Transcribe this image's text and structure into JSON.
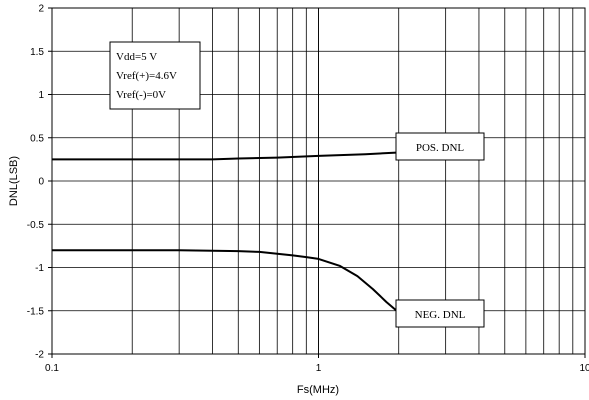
{
  "chart_data": {
    "type": "line",
    "xlabel": "Fs(MHz)",
    "ylabel": "DNL(LSB)",
    "xscale": "log",
    "xlim": [
      0.1,
      10
    ],
    "ylim": [
      -2,
      2
    ],
    "x_ticks": [
      "0.1",
      "1",
      "10"
    ],
    "y_ticks": [
      "2",
      "1.5",
      "1",
      "0.5",
      "0",
      "-0.5",
      "-1",
      "-1.5",
      "-2"
    ],
    "grid": true,
    "conditions": [
      "Vdd=5 V",
      "Vref(+)=4.6V",
      "Vref(-)=0V"
    ],
    "series": [
      {
        "name": "POS. DNL",
        "color": "#000000",
        "x": [
          0.1,
          0.2,
          0.4,
          0.5,
          0.7,
          1.0,
          1.5,
          2.0
        ],
        "y": [
          0.25,
          0.25,
          0.25,
          0.26,
          0.27,
          0.29,
          0.31,
          0.33
        ]
      },
      {
        "name": "NEG. DNL",
        "color": "#000000",
        "x": [
          0.1,
          0.2,
          0.3,
          0.5,
          0.6,
          0.7,
          0.8,
          0.9,
          1.0,
          1.2,
          1.4,
          1.6,
          1.8,
          2.0
        ],
        "y": [
          -0.8,
          -0.8,
          -0.8,
          -0.81,
          -0.82,
          -0.84,
          -0.86,
          -0.88,
          -0.9,
          -0.98,
          -1.1,
          -1.25,
          -1.4,
          -1.52
        ]
      }
    ]
  }
}
